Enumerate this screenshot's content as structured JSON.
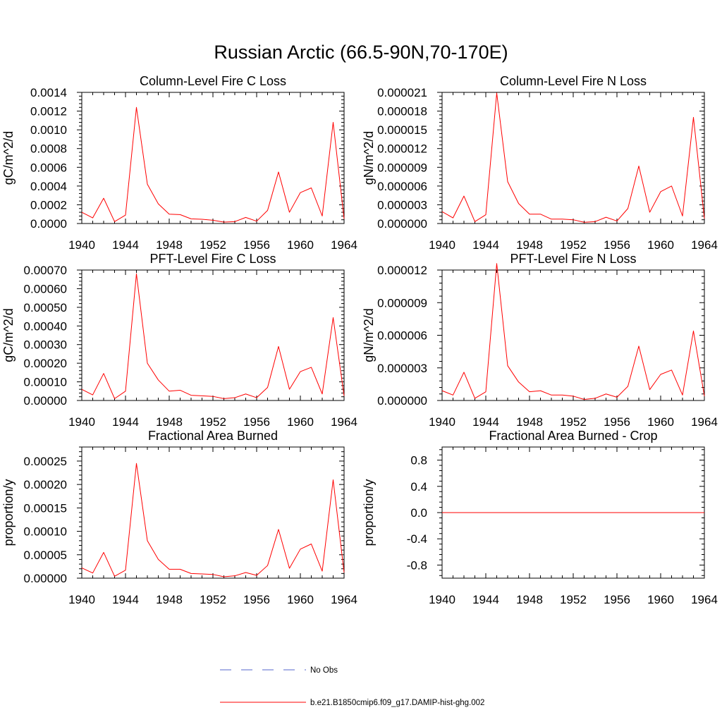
{
  "figure": {
    "title": "Russian Arctic (66.5-90N,70-170E)"
  },
  "legend": {
    "entries": [
      {
        "label": "No Obs",
        "color": "#5566cc",
        "style": "dashed"
      },
      {
        "label": "b.e21.B1850cmip6.f09_g17.DAMIP-hist-ghg.002",
        "color": "#ff0000",
        "style": "solid"
      }
    ]
  },
  "chart_data": [
    {
      "type": "line",
      "title": "Column-Level Fire C Loss",
      "ylabel": "gC/m^2/d",
      "xlim": [
        1940,
        1964
      ],
      "ylim": [
        0,
        0.0014
      ],
      "xticks": [
        1940,
        1944,
        1948,
        1952,
        1956,
        1960,
        1964
      ],
      "yticks": [
        "0.0000",
        "0.0002",
        "0.0004",
        "0.0006",
        "0.0008",
        "0.0010",
        "0.0012",
        "0.0014"
      ],
      "yticks_values": [
        0,
        0.0002,
        0.0004,
        0.0006,
        0.0008,
        0.001,
        0.0012,
        0.0014
      ],
      "x": [
        1940,
        1941,
        1942,
        1943,
        1944,
        1945,
        1946,
        1947,
        1948,
        1949,
        1950,
        1951,
        1952,
        1953,
        1954,
        1955,
        1956,
        1957,
        1958,
        1959,
        1960,
        1961,
        1962,
        1963,
        1964
      ],
      "series": [
        {
          "color": "#ff0000",
          "values": [
            0.00012,
            6e-05,
            0.00027,
            2e-05,
            9e-05,
            0.00124,
            0.00042,
            0.00021,
            0.0001,
            9.5e-05,
            5e-05,
            4.5e-05,
            3.5e-05,
            1.5e-05,
            2e-05,
            6.5e-05,
            2.5e-05,
            0.00014,
            0.00055,
            0.00012,
            0.00033,
            0.00038,
            8e-05,
            0.00108,
            5e-05
          ]
        }
      ]
    },
    {
      "type": "line",
      "title": "Column-Level Fire N Loss",
      "ylabel": "gN/m^2/d",
      "xlim": [
        1940,
        1964
      ],
      "ylim": [
        0,
        2.1e-05
      ],
      "xticks": [
        1940,
        1944,
        1948,
        1952,
        1956,
        1960,
        1964
      ],
      "yticks": [
        "0.000000",
        "0.000003",
        "0.000006",
        "0.000009",
        "0.000012",
        "0.000015",
        "0.000018",
        "0.000021"
      ],
      "yticks_values": [
        0,
        3e-06,
        6e-06,
        9e-06,
        1.2e-05,
        1.5e-05,
        1.8e-05,
        2.1e-05
      ],
      "x": [
        1940,
        1941,
        1942,
        1943,
        1944,
        1945,
        1946,
        1947,
        1948,
        1949,
        1950,
        1951,
        1952,
        1953,
        1954,
        1955,
        1956,
        1957,
        1958,
        1959,
        1960,
        1961,
        1962,
        1963,
        1964
      ],
      "series": [
        {
          "color": "#ff0000",
          "values": [
            1.9e-06,
            9e-07,
            4.4e-06,
            3e-07,
            1.4e-06,
            2.09e-05,
            6.7e-06,
            3.2e-06,
            1.5e-06,
            1.5e-06,
            7e-07,
            7e-07,
            6e-07,
            2e-07,
            3e-07,
            1e-06,
            4e-07,
            2.4e-06,
            9.2e-06,
            1.8e-06,
            5.1e-06,
            6e-06,
            1.2e-06,
            1.7e-05,
            8e-07
          ]
        }
      ]
    },
    {
      "type": "line",
      "title": "PFT-Level Fire C Loss",
      "ylabel": "gC/m^2/d",
      "xlim": [
        1940,
        1964
      ],
      "ylim": [
        0,
        0.0007
      ],
      "xticks": [
        1940,
        1944,
        1948,
        1952,
        1956,
        1960,
        1964
      ],
      "yticks": [
        "0.00000",
        "0.00010",
        "0.00020",
        "0.00030",
        "0.00040",
        "0.00050",
        "0.00060",
        "0.00070"
      ],
      "yticks_values": [
        0,
        0.0001,
        0.0002,
        0.0003,
        0.0004,
        0.0005,
        0.0006,
        0.0007
      ],
      "x": [
        1940,
        1941,
        1942,
        1943,
        1944,
        1945,
        1946,
        1947,
        1948,
        1949,
        1950,
        1951,
        1952,
        1953,
        1954,
        1955,
        1956,
        1957,
        1958,
        1959,
        1960,
        1961,
        1962,
        1963,
        1964
      ],
      "series": [
        {
          "color": "#ff0000",
          "values": [
            6e-05,
            3e-05,
            0.000145,
            1e-05,
            5e-05,
            0.00068,
            0.0002,
            0.00011,
            5e-05,
            5.5e-05,
            2.8e-05,
            2.5e-05,
            2.2e-05,
            1e-05,
            1.5e-05,
            3.5e-05,
            1.5e-05,
            7e-05,
            0.00029,
            6e-05,
            0.000155,
            0.000178,
            3.5e-05,
            0.000445,
            2.5e-05
          ]
        }
      ]
    },
    {
      "type": "line",
      "title": "PFT-Level Fire N Loss",
      "ylabel": "gN/m^2/d",
      "xlim": [
        1940,
        1964
      ],
      "ylim": [
        0,
        1.2e-05
      ],
      "xticks": [
        1940,
        1944,
        1948,
        1952,
        1956,
        1960,
        1964
      ],
      "yticks": [
        "0.000000",
        "0.000003",
        "0.000006",
        "0.000009",
        "0.000012"
      ],
      "yticks_values": [
        0,
        3e-06,
        6e-06,
        9e-06,
        1.2e-05
      ],
      "x": [
        1940,
        1941,
        1942,
        1943,
        1944,
        1945,
        1946,
        1947,
        1948,
        1949,
        1950,
        1951,
        1952,
        1953,
        1954,
        1955,
        1956,
        1957,
        1958,
        1959,
        1960,
        1961,
        1962,
        1963,
        1964
      ],
      "series": [
        {
          "color": "#ff0000",
          "values": [
            9e-07,
            5e-07,
            2.6e-06,
            2e-07,
            8e-07,
            1.26e-05,
            3.2e-06,
            1.7e-06,
            8e-07,
            9e-07,
            5e-07,
            5e-07,
            4e-07,
            1e-07,
            2e-07,
            6e-07,
            3e-07,
            1.3e-06,
            5e-06,
            1e-06,
            2.4e-06,
            2.8e-06,
            5e-07,
            6.4e-06,
            4e-07
          ]
        }
      ]
    },
    {
      "type": "line",
      "title": "Fractional Area Burned",
      "ylabel": "proportion/y",
      "xlim": [
        1940,
        1964
      ],
      "ylim": [
        0,
        0.00028
      ],
      "xticks": [
        1940,
        1944,
        1948,
        1952,
        1956,
        1960,
        1964
      ],
      "yticks": [
        "0.00000",
        "0.00005",
        "0.00010",
        "0.00015",
        "0.00020",
        "0.00025"
      ],
      "yticks_values": [
        0,
        5e-05,
        0.0001,
        0.00015,
        0.0002,
        0.00025
      ],
      "x": [
        1940,
        1941,
        1942,
        1943,
        1944,
        1945,
        1946,
        1947,
        1948,
        1949,
        1950,
        1951,
        1952,
        1953,
        1954,
        1955,
        1956,
        1957,
        1958,
        1959,
        1960,
        1961,
        1962,
        1963,
        1964
      ],
      "series": [
        {
          "color": "#ff0000",
          "values": [
            2.2e-05,
            1.1e-05,
            5.5e-05,
            4e-06,
            1.7e-05,
            0.000245,
            8e-05,
            4e-05,
            1.9e-05,
            1.9e-05,
            1e-05,
            9e-06,
            8e-06,
            3e-06,
            5e-06,
            1.2e-05,
            6e-06,
            2.7e-05,
            0.000104,
            2.1e-05,
            6.2e-05,
            7.3e-05,
            1.5e-05,
            0.00021,
            1.2e-05
          ]
        }
      ]
    },
    {
      "type": "line",
      "title": "Fractional Area Burned - Crop",
      "ylabel": "proportion/y",
      "xlim": [
        1940,
        1964
      ],
      "ylim": [
        -1,
        1
      ],
      "xticks": [
        1940,
        1944,
        1948,
        1952,
        1956,
        1960,
        1964
      ],
      "yticks": [
        "-0.8",
        "-0.4",
        "0.0",
        "0.4",
        "0.8"
      ],
      "yticks_values": [
        -0.8,
        -0.4,
        0,
        0.4,
        0.8
      ],
      "x": [
        1940,
        1941,
        1942,
        1943,
        1944,
        1945,
        1946,
        1947,
        1948,
        1949,
        1950,
        1951,
        1952,
        1953,
        1954,
        1955,
        1956,
        1957,
        1958,
        1959,
        1960,
        1961,
        1962,
        1963,
        1964
      ],
      "series": [
        {
          "color": "#ff0000",
          "values": [
            0,
            0,
            0,
            0,
            0,
            0,
            0,
            0,
            0,
            0,
            0,
            0,
            0,
            0,
            0,
            0,
            0,
            0,
            0,
            0,
            0,
            0,
            0,
            0,
            0
          ]
        }
      ]
    }
  ]
}
